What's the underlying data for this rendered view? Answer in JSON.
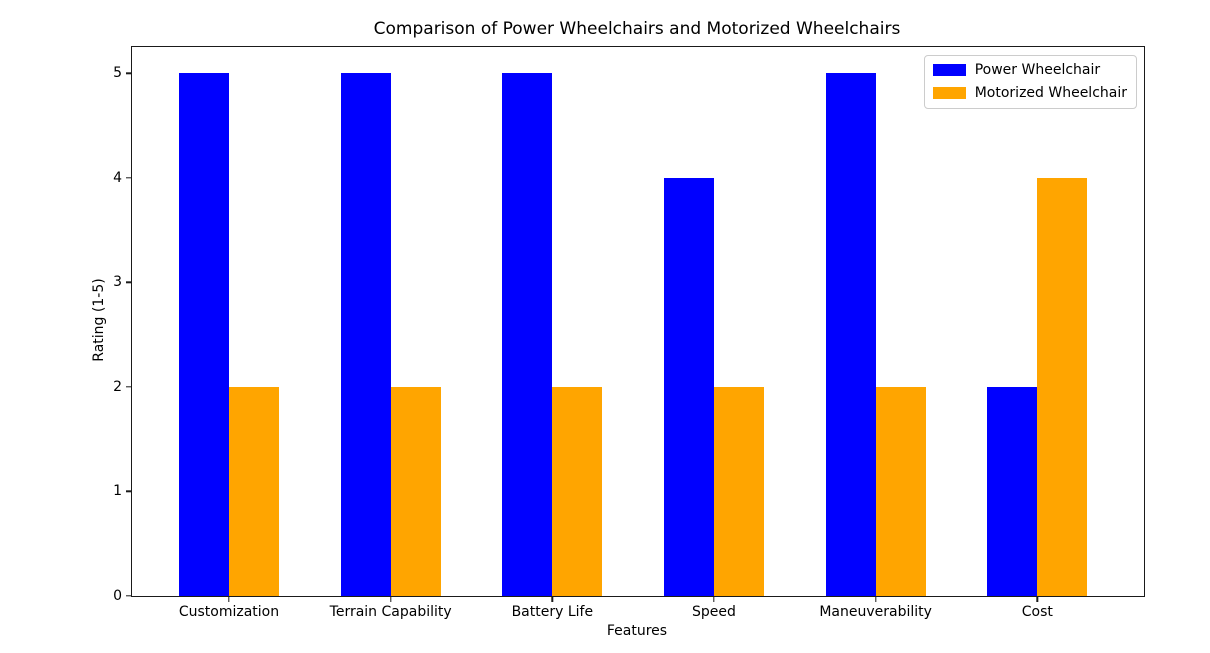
{
  "chart_data": {
    "type": "bar",
    "title": "Comparison of Power Wheelchairs and Motorized Wheelchairs",
    "xlabel": "Features",
    "ylabel": "Rating (1-5)",
    "categories": [
      "Customization",
      "Terrain Capability",
      "Battery Life",
      "Speed",
      "Maneuverability",
      "Cost"
    ],
    "series": [
      {
        "name": "Power Wheelchair",
        "color": "#0000ff",
        "values": [
          5,
          5,
          5,
          4,
          5,
          2
        ]
      },
      {
        "name": "Motorized Wheelchair",
        "color": "#ffa500",
        "values": [
          2,
          2,
          2,
          2,
          2,
          4
        ]
      }
    ],
    "yticks": [
      0,
      1,
      2,
      3,
      4,
      5
    ],
    "ylim": [
      0,
      5.25
    ],
    "xlim": [
      -0.6,
      5.66
    ],
    "bar_width": 0.31,
    "grid": false,
    "legend_position": "upper right",
    "plot_background": "#ffffff",
    "axis_color": "#1a1a1a"
  }
}
